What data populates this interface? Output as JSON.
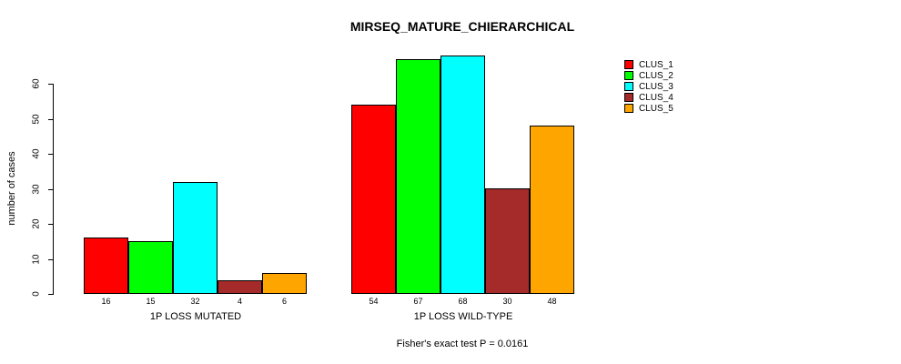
{
  "title": "MIRSEQ_MATURE_CHIERARCHICAL",
  "chart_data": {
    "type": "bar",
    "title": "MIRSEQ_MATURE_CHIERARCHICAL",
    "xlabel": "",
    "ylabel": "number of cases",
    "ylim": [
      0,
      60
    ],
    "yticks": [
      0,
      10,
      20,
      30,
      40,
      50,
      60
    ],
    "grid": false,
    "legend_position": "right",
    "categories": [
      "1P LOSS MUTATED",
      "1P LOSS WILD-TYPE"
    ],
    "series": [
      {
        "name": "CLUS_1",
        "color": "#FF0000",
        "values": [
          16,
          54
        ]
      },
      {
        "name": "CLUS_2",
        "color": "#00FF00",
        "values": [
          15,
          67
        ]
      },
      {
        "name": "CLUS_3",
        "color": "#00FFFF",
        "values": [
          32,
          68
        ]
      },
      {
        "name": "CLUS_4",
        "color": "#A52A2A",
        "values": [
          4,
          30
        ]
      },
      {
        "name": "CLUS_5",
        "color": "#FFA500",
        "values": [
          6,
          48
        ]
      }
    ],
    "bar_value_labels": {
      "1P LOSS MUTATED": [
        16,
        15,
        32,
        4,
        6
      ],
      "1P LOSS WILD-TYPE": [
        54,
        67,
        68,
        30,
        48
      ]
    },
    "annotation": "Fisher's exact test P = 0.0161"
  },
  "legend": {
    "items": [
      {
        "label": "CLUS_1",
        "color": "#FF0000"
      },
      {
        "label": "CLUS_2",
        "color": "#00FF00"
      },
      {
        "label": "CLUS_3",
        "color": "#00FFFF"
      },
      {
        "label": "CLUS_4",
        "color": "#A52A2A"
      },
      {
        "label": "CLUS_5",
        "color": "#FFA500"
      }
    ]
  },
  "footer": {
    "text": "Fisher's exact test P = 0.0161"
  }
}
